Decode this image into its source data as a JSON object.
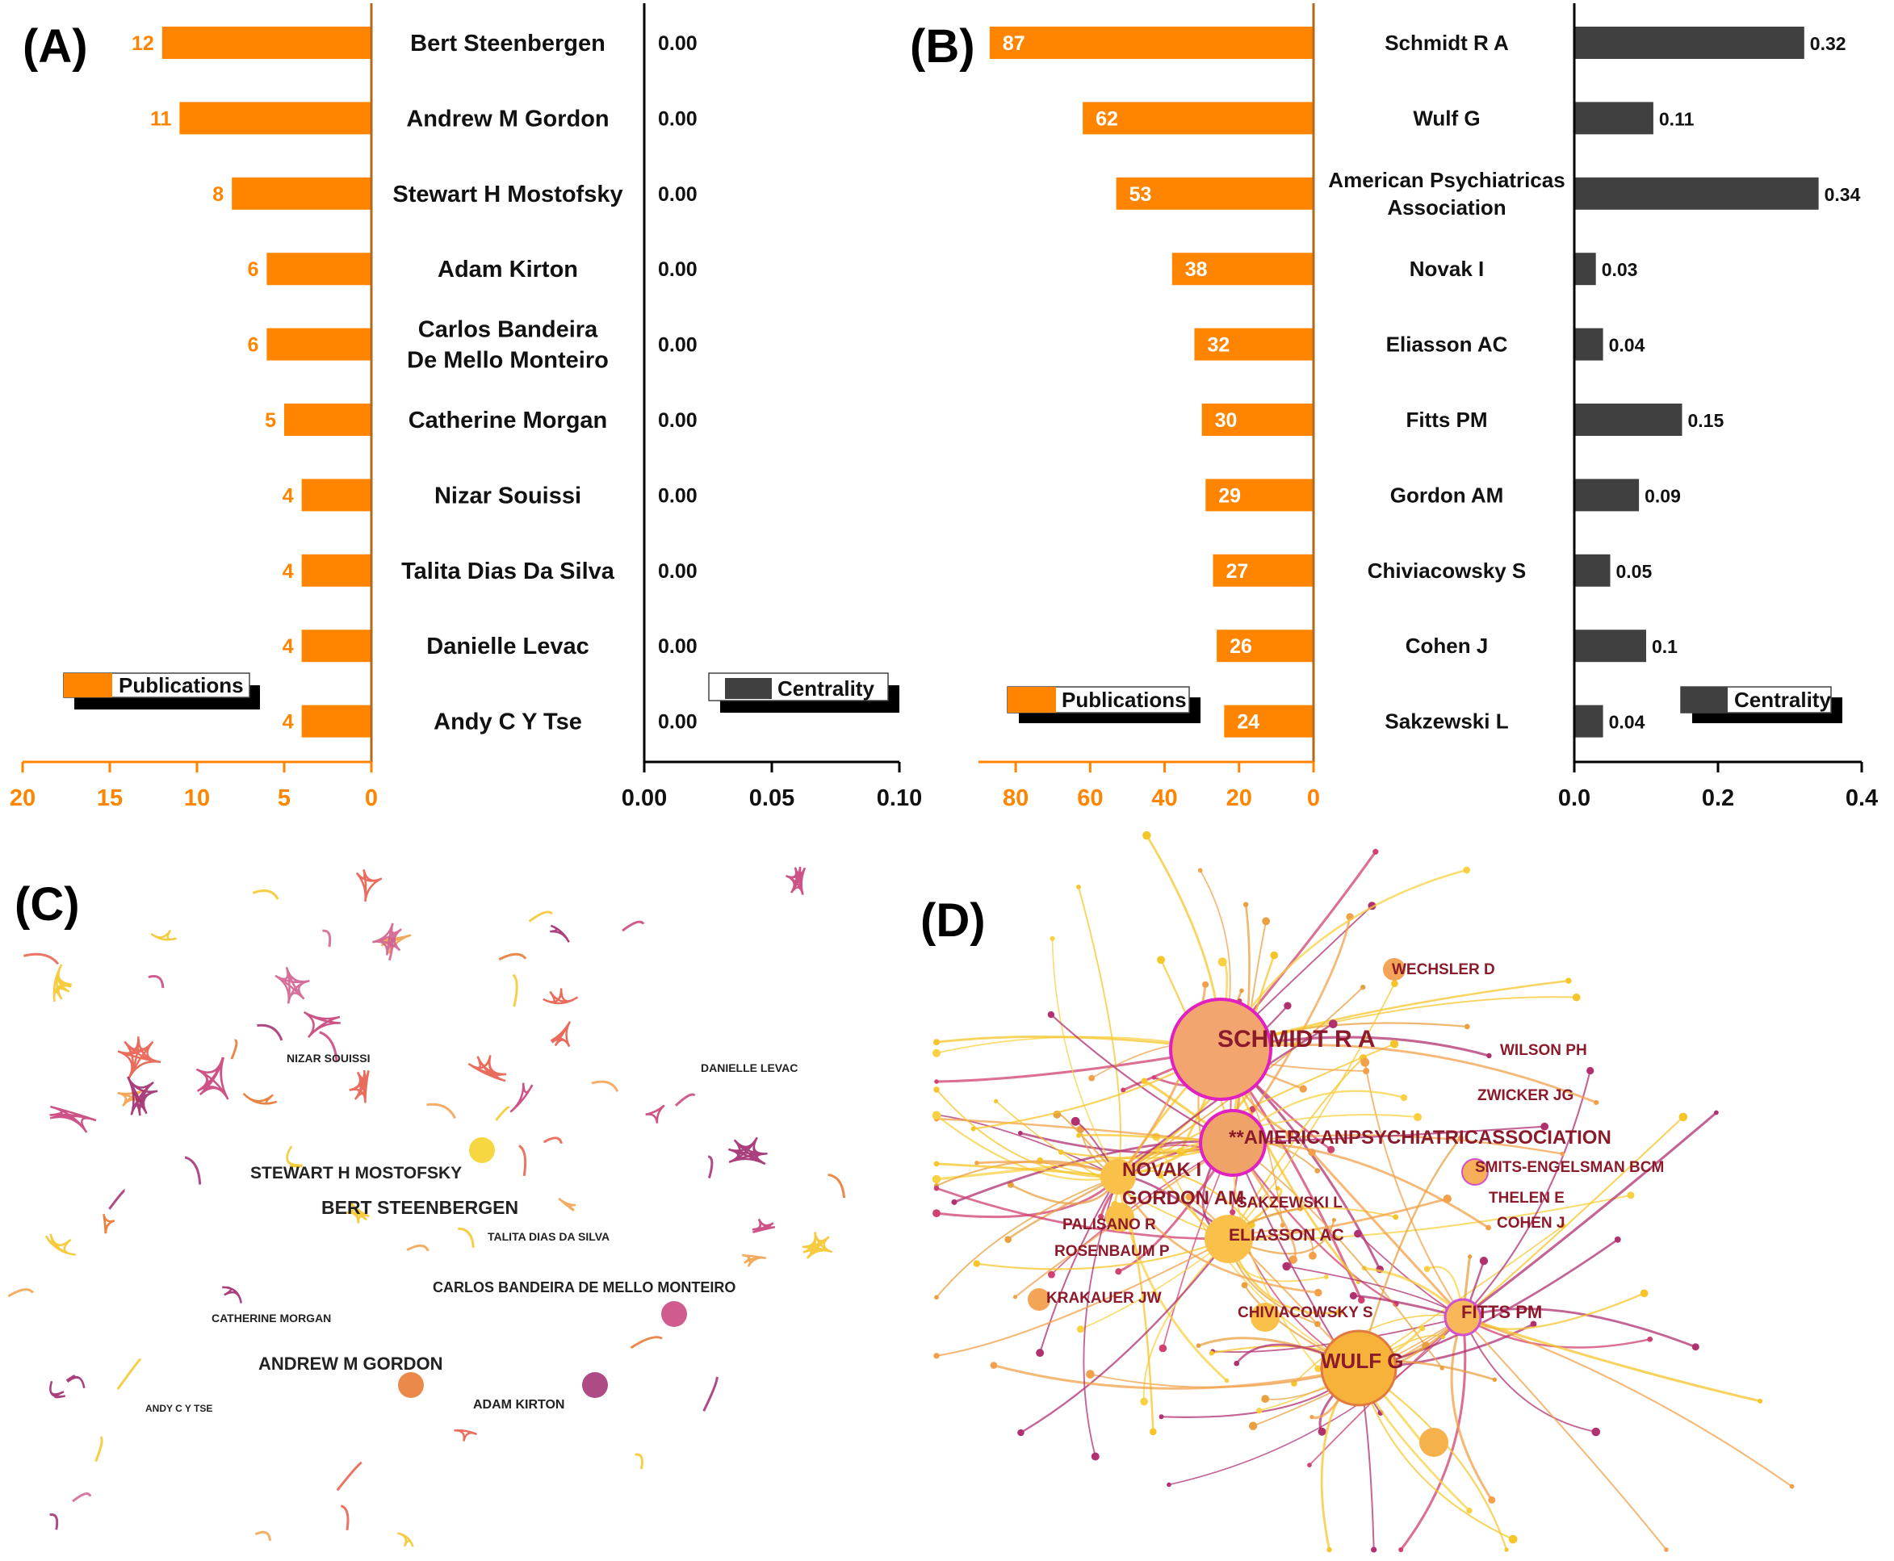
{
  "panels": {
    "a": "(A)",
    "b": "(B)",
    "c": "(C)",
    "d": "(D)"
  },
  "colors": {
    "publications": "#ff8400",
    "centrality": "#404040",
    "axis_orange": "#ff8400",
    "axis_divider": "#b06a1c"
  },
  "chart_data": [
    {
      "id": "A",
      "type": "bar",
      "orientation": "horizontal-butterfly",
      "title": "(A)",
      "categories": [
        "Bert Steenbergen",
        "Andrew M Gordon",
        "Stewart H Mostofsky",
        "Adam Kirton",
        "Carlos Bandeira De Mello Monteiro",
        "Catherine Morgan",
        "Nizar Souissi",
        "Talita Dias Da Silva",
        "Danielle Levac",
        "Andy C Y Tse"
      ],
      "category_lines": [
        [
          "Bert Steenbergen"
        ],
        [
          "Andrew M Gordon"
        ],
        [
          "Stewart H Mostofsky"
        ],
        [
          "Adam Kirton"
        ],
        [
          "Carlos Bandeira",
          "De Mello Monteiro"
        ],
        [
          "Catherine Morgan"
        ],
        [
          "Nizar Souissi"
        ],
        [
          "Talita Dias Da Silva"
        ],
        [
          "Danielle Levac"
        ],
        [
          "Andy C Y Tse"
        ]
      ],
      "series": [
        {
          "name": "Publications",
          "values": [
            12,
            11,
            8,
            6,
            6,
            5,
            4,
            4,
            4,
            4
          ],
          "labels": [
            "12",
            "11",
            "8",
            "6",
            "6",
            "5",
            "4",
            "4",
            "4",
            "4"
          ],
          "color": "#ff8400",
          "xlim": [
            20,
            0
          ],
          "ticks": [
            "20",
            "15",
            "10",
            "5",
            "0"
          ],
          "tick_values": [
            20,
            15,
            10,
            5,
            0
          ]
        },
        {
          "name": "Centrality",
          "values": [
            0,
            0,
            0,
            0,
            0,
            0,
            0,
            0,
            0,
            0
          ],
          "labels": [
            "0.00",
            "0.00",
            "0.00",
            "0.00",
            "0.00",
            "0.00",
            "0.00",
            "0.00",
            "0.00",
            "0.00"
          ],
          "color": "#404040",
          "xlim": [
            0,
            0.1
          ],
          "ticks": [
            "0.00",
            "0.05",
            "0.10"
          ],
          "tick_values": [
            0,
            0.05,
            0.1
          ]
        }
      ]
    },
    {
      "id": "B",
      "type": "bar",
      "orientation": "horizontal-butterfly",
      "title": "(B)",
      "categories": [
        "Schmidt R A",
        "Wulf G",
        "American Psychiatricas Association",
        "Novak I",
        "Eliasson AC",
        "Fitts PM",
        "Gordon AM",
        "Chiviacowsky S",
        "Cohen J",
        "Sakzewski L"
      ],
      "category_lines": [
        [
          "Schmidt R A"
        ],
        [
          "Wulf G"
        ],
        [
          "American Psychiatricas",
          "Association"
        ],
        [
          "Novak I"
        ],
        [
          "Eliasson AC"
        ],
        [
          "Fitts PM"
        ],
        [
          "Gordon AM"
        ],
        [
          "Chiviacowsky S"
        ],
        [
          "Cohen J"
        ],
        [
          "Sakzewski L"
        ]
      ],
      "series": [
        {
          "name": "Publications",
          "values": [
            87,
            62,
            53,
            38,
            32,
            30,
            29,
            27,
            26,
            24
          ],
          "labels": [
            "87",
            "62",
            "53",
            "38",
            "32",
            "30",
            "29",
            "27",
            "26",
            "24"
          ],
          "color": "#ff8400",
          "xlim": [
            90,
            0
          ],
          "ticks": [
            "80",
            "60",
            "40",
            "20",
            "0"
          ],
          "tick_values": [
            80,
            60,
            40,
            20,
            0
          ]
        },
        {
          "name": "Centrality",
          "values": [
            0.32,
            0.11,
            0.34,
            0.03,
            0.04,
            0.15,
            0.09,
            0.05,
            0.1,
            0.04
          ],
          "labels": [
            "0.32",
            "0.11",
            "0.34",
            "0.03",
            "0.04",
            "0.15",
            "0.09",
            "0.05",
            "0.1",
            "0.04"
          ],
          "color": "#404040",
          "xlim": [
            0,
            0.4
          ],
          "ticks": [
            "0.0",
            "0.2",
            "0.4"
          ],
          "tick_values": [
            0,
            0.2,
            0.4
          ]
        }
      ]
    }
  ],
  "network_c": {
    "labels": [
      "NIZAR SOUISSI",
      "DANIELLE LEVAC",
      "STEWART H MOSTOFSKY",
      "BERT STEENBERGEN",
      "TALITA DIAS DA SILVA",
      "CARLOS BANDEIRA DE MELLO MONTEIRO",
      "CATHERINE MORGAN",
      "ANDREW M GORDON",
      "ANDY C Y TSE",
      "ADAM KIRTON"
    ]
  },
  "network_d": {
    "labels": [
      "WECHSLER D",
      "SCHMIDT R A",
      "WILSON PH",
      "ZWICKER JG",
      "**AMERICANPSYCHIATRICASSOCIATION",
      "NOVAK I",
      "SMITS-ENGELSMAN BCM",
      "GORDON AM",
      "SAKZEWSKI L",
      "THELEN E",
      "PALISANO R",
      "COHEN J",
      "ELIASSON AC",
      "ROSENBAUM P",
      "KRAKAUER JW",
      "CHIVIACOWSKY S",
      "FITTS PM",
      "WULF G"
    ]
  }
}
